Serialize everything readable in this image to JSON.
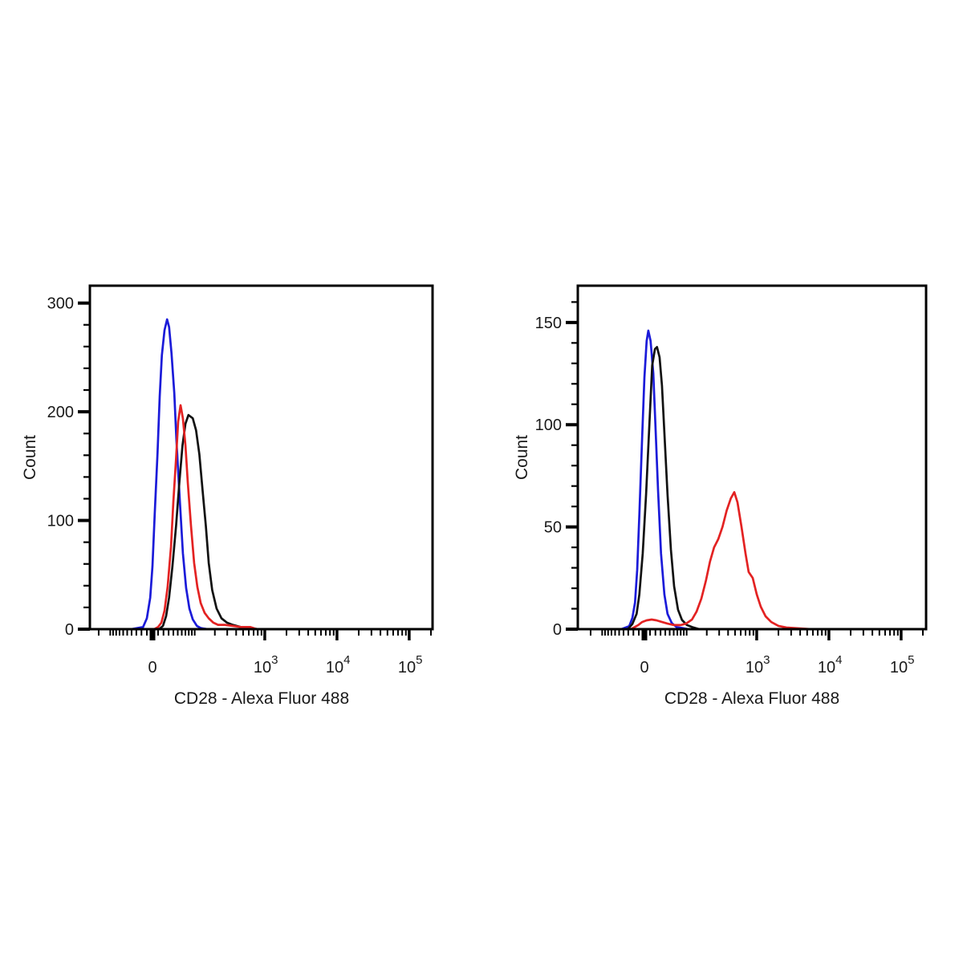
{
  "figure": {
    "background": "#ffffff",
    "axis_color": "#000000"
  },
  "chart_data": [
    {
      "type": "line",
      "position": "left",
      "title": "",
      "xlabel": "CD28 - Alexa Fluor 488",
      "ylabel": "Count",
      "x_scale": "biexponential",
      "x_range": [
        -200,
        220000
      ],
      "x_major_ticks": [
        {
          "value": 0,
          "label": "0"
        },
        {
          "value": 1000,
          "base": "10",
          "exponent": "3"
        },
        {
          "value": 10000,
          "base": "10",
          "exponent": "4"
        },
        {
          "value": 100000,
          "base": "10",
          "exponent": "5"
        }
      ],
      "y_ticks": [
        0,
        100,
        200,
        300
      ],
      "y_minor_step": 20,
      "y_max": 316,
      "grid": false,
      "legend": "none",
      "series": [
        {
          "name": "blue",
          "color": "#1b1bd9",
          "peak": {
            "x": 27,
            "count": 285
          },
          "points": [
            [
              -300,
              0
            ],
            [
              -40,
              0
            ],
            [
              -17,
              2
            ],
            [
              -10,
              10
            ],
            [
              -4,
              29
            ],
            [
              0,
              58
            ],
            [
              4,
              106
            ],
            [
              9,
              162
            ],
            [
              13,
              214
            ],
            [
              17,
              252
            ],
            [
              22,
              275
            ],
            [
              27,
              285
            ],
            [
              31,
              278
            ],
            [
              36,
              254
            ],
            [
              42,
              217
            ],
            [
              47,
              173
            ],
            [
              55,
              118
            ],
            [
              63,
              70
            ],
            [
              72,
              38
            ],
            [
              82,
              19
            ],
            [
              93,
              9
            ],
            [
              108,
              3
            ],
            [
              124,
              1
            ],
            [
              155,
              0
            ],
            [
              300000,
              0
            ]
          ]
        },
        {
          "name": "black",
          "color": "#121212",
          "peak": {
            "x": 79,
            "count": 197
          },
          "points": [
            [
              -300,
              0
            ],
            [
              5,
              0
            ],
            [
              12,
              0
            ],
            [
              19,
              3
            ],
            [
              25,
              12
            ],
            [
              31,
              29
            ],
            [
              38,
              58
            ],
            [
              46,
              95
            ],
            [
              54,
              136
            ],
            [
              62,
              169
            ],
            [
              70,
              189
            ],
            [
              79,
              197
            ],
            [
              93,
              194
            ],
            [
              105,
              183
            ],
            [
              118,
              161
            ],
            [
              132,
              128
            ],
            [
              148,
              95
            ],
            [
              163,
              61
            ],
            [
              183,
              36
            ],
            [
              212,
              19
            ],
            [
              249,
              10
            ],
            [
              298,
              6
            ],
            [
              357,
              4
            ],
            [
              463,
              2
            ],
            [
              626,
              1
            ],
            [
              800,
              0
            ],
            [
              300000,
              0
            ]
          ]
        },
        {
          "name": "red",
          "color": "#e32222",
          "peak": {
            "x": 57,
            "count": 206
          },
          "points": [
            [
              -300,
              0
            ],
            [
              -10,
              0
            ],
            [
              3,
              0
            ],
            [
              10,
              2
            ],
            [
              16,
              6
            ],
            [
              22,
              17
            ],
            [
              28,
              39
            ],
            [
              35,
              76
            ],
            [
              40,
              117
            ],
            [
              46,
              157
            ],
            [
              51,
              191
            ],
            [
              57,
              206
            ],
            [
              63,
              194
            ],
            [
              70,
              169
            ],
            [
              77,
              135
            ],
            [
              87,
              95
            ],
            [
              98,
              61
            ],
            [
              110,
              39
            ],
            [
              124,
              24
            ],
            [
              142,
              15
            ],
            [
              163,
              10
            ],
            [
              190,
              6
            ],
            [
              222,
              4
            ],
            [
              276,
              4
            ],
            [
              357,
              3
            ],
            [
              463,
              2
            ],
            [
              626,
              2
            ],
            [
              777,
              0
            ],
            [
              300000,
              0
            ]
          ]
        }
      ]
    },
    {
      "type": "line",
      "position": "right",
      "title": "",
      "xlabel": "CD28 - Alexa Fluor 488",
      "ylabel": "Count",
      "x_scale": "biexponential",
      "x_range": [
        -230,
        220000
      ],
      "x_major_ticks": [
        {
          "value": 0,
          "label": "0"
        },
        {
          "value": 1000,
          "base": "10",
          "exponent": "3"
        },
        {
          "value": 10000,
          "base": "10",
          "exponent": "4"
        },
        {
          "value": 100000,
          "base": "10",
          "exponent": "5"
        }
      ],
      "y_ticks": [
        0,
        50,
        100,
        150
      ],
      "y_minor_step": 10,
      "y_max": 168,
      "grid": false,
      "legend": "none",
      "series": [
        {
          "name": "blue",
          "color": "#1b1bd9",
          "peak": {
            "x": 7,
            "count": 146
          },
          "points": [
            [
              -300,
              0
            ],
            [
              -45,
              0
            ],
            [
              -28,
              1.5
            ],
            [
              -22,
              5.5
            ],
            [
              -17,
              13
            ],
            [
              -13,
              29
            ],
            [
              -9,
              56
            ],
            [
              -4,
              94
            ],
            [
              0,
              123
            ],
            [
              4,
              141
            ],
            [
              7,
              146
            ],
            [
              11,
              141
            ],
            [
              16,
              125
            ],
            [
              20,
              100
            ],
            [
              25,
              68
            ],
            [
              31,
              37
            ],
            [
              38,
              17
            ],
            [
              45,
              7.5
            ],
            [
              55,
              3
            ],
            [
              68,
              1
            ],
            [
              87,
              0.5
            ],
            [
              105,
              0
            ],
            [
              300000,
              0
            ]
          ]
        },
        {
          "name": "black",
          "color": "#121212",
          "peak": {
            "x": 23,
            "count": 138
          },
          "points": [
            [
              -300,
              0
            ],
            [
              -38,
              0
            ],
            [
              -31,
              0
            ],
            [
              -22,
              2.5
            ],
            [
              -14,
              7.5
            ],
            [
              -9,
              17
            ],
            [
              -3,
              37
            ],
            [
              3,
              66
            ],
            [
              9,
              101
            ],
            [
              14,
              129
            ],
            [
              19,
              137
            ],
            [
              23,
              138
            ],
            [
              28,
              133
            ],
            [
              33,
              119
            ],
            [
              38,
              96
            ],
            [
              45,
              66
            ],
            [
              53,
              39
            ],
            [
              61,
              21
            ],
            [
              72,
              9.5
            ],
            [
              84,
              4.5
            ],
            [
              101,
              2
            ],
            [
              123,
              1
            ],
            [
              156,
              0
            ],
            [
              300000,
              0
            ]
          ]
        },
        {
          "name": "red",
          "color": "#e32222",
          "peak": {
            "x": 488,
            "count": 67
          },
          "points": [
            [
              -300,
              0
            ],
            [
              -25,
              0
            ],
            [
              -11,
              2
            ],
            [
              -4,
              3.5
            ],
            [
              4,
              4.3
            ],
            [
              13,
              4.7
            ],
            [
              22,
              4.3
            ],
            [
              33,
              3.5
            ],
            [
              45,
              2.7
            ],
            [
              61,
              2
            ],
            [
              80,
              2
            ],
            [
              98,
              2.7
            ],
            [
              121,
              4.7
            ],
            [
              142,
              8.6
            ],
            [
              167,
              15
            ],
            [
              195,
              24
            ],
            [
              222,
              33
            ],
            [
              254,
              40
            ],
            [
              291,
              44
            ],
            [
              334,
              50
            ],
            [
              382,
              58
            ],
            [
              437,
              64
            ],
            [
              488,
              67
            ],
            [
              541,
              62
            ],
            [
              615,
              50
            ],
            [
              699,
              37
            ],
            [
              774,
              28
            ],
            [
              881,
              25
            ],
            [
              1002,
              17
            ],
            [
              1140,
              11
            ],
            [
              1329,
              6.3
            ],
            [
              1590,
              3.5
            ],
            [
              2002,
              1.6
            ],
            [
              2585,
              0.8
            ],
            [
              3792,
              0.4
            ],
            [
              5572,
              0
            ],
            [
              300000,
              0
            ]
          ]
        }
      ]
    }
  ]
}
